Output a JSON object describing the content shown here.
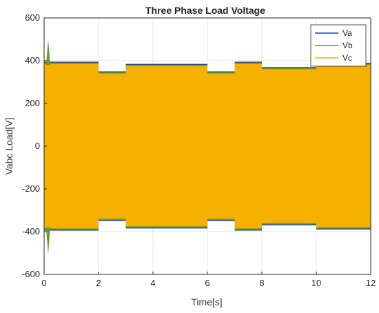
{
  "chart_data": {
    "type": "line",
    "title": "Three Phase Load Voltage",
    "xlabel": "Time[s]",
    "ylabel": "Vabc Load[V]",
    "xlim": [
      0,
      12
    ],
    "ylim": [
      -600,
      600
    ],
    "xticks": [
      0,
      2,
      4,
      6,
      8,
      10,
      12
    ],
    "yticks": [
      -600,
      -400,
      -200,
      0,
      200,
      400,
      600
    ],
    "grid": true,
    "legend_position": "top-right",
    "series": [
      {
        "name": "Va",
        "color": "#1f3fa8"
      },
      {
        "name": "Vb",
        "color": "#6b9a1e"
      },
      {
        "name": "Vc",
        "color": "#f5b000"
      }
    ],
    "envelope": [
      {
        "t0": 0.0,
        "t1": 2.0,
        "amplitude": 385
      },
      {
        "t0": 2.0,
        "t1": 3.0,
        "amplitude": 340
      },
      {
        "t0": 3.0,
        "t1": 6.0,
        "amplitude": 375
      },
      {
        "t0": 6.0,
        "t1": 7.0,
        "amplitude": 340
      },
      {
        "t0": 7.0,
        "t1": 8.0,
        "amplitude": 385
      },
      {
        "t0": 8.0,
        "t1": 10.0,
        "amplitude": 360
      },
      {
        "t0": 10.0,
        "t1": 12.0,
        "amplitude": 380
      }
    ],
    "startup_transient": {
      "t": 0.15,
      "peak": 500,
      "trough": -505
    }
  }
}
